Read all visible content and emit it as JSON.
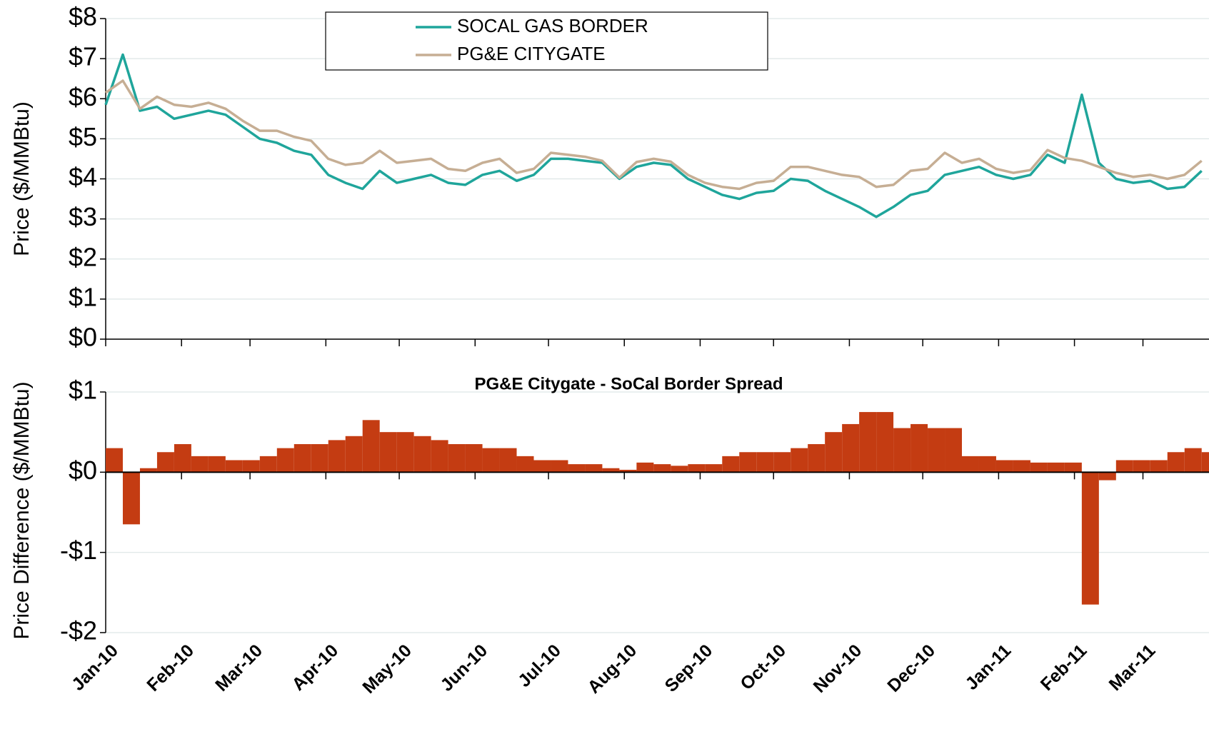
{
  "chart_data": [
    {
      "type": "line",
      "ylabel": "Price ($/MMBtu)",
      "legend": "top",
      "xlim": [
        0,
        451
      ],
      "ylim": [
        0,
        8
      ],
      "grid": true,
      "yticks": [
        {
          "value": 0,
          "label": "$0"
        },
        {
          "value": 1,
          "label": "$1"
        },
        {
          "value": 2,
          "label": "$2"
        },
        {
          "value": 3,
          "label": "$3"
        },
        {
          "value": 4,
          "label": "$4"
        },
        {
          "value": 5,
          "label": "$5"
        },
        {
          "value": 6,
          "label": "$6"
        },
        {
          "value": 7,
          "label": "$7"
        },
        {
          "value": 8,
          "label": "$8"
        }
      ],
      "x": [
        0,
        7,
        14,
        21,
        28,
        35,
        42,
        49,
        56,
        63,
        70,
        77,
        84,
        91,
        98,
        105,
        112,
        119,
        126,
        133,
        140,
        147,
        154,
        161,
        168,
        175,
        182,
        189,
        196,
        203,
        210,
        217,
        224,
        231,
        238,
        245,
        252,
        259,
        266,
        273,
        280,
        287,
        294,
        301,
        308,
        315,
        322,
        329,
        336,
        343,
        350,
        357,
        364,
        371,
        378,
        385,
        392,
        399,
        406,
        413,
        420,
        427,
        434,
        441,
        448
      ],
      "series": [
        {
          "name": "SOCAL GAS BORDER",
          "color": "#1fa59b",
          "values": [
            5.85,
            7.1,
            5.7,
            5.8,
            5.5,
            5.6,
            5.7,
            5.6,
            5.3,
            5.0,
            4.9,
            4.7,
            4.6,
            4.1,
            3.9,
            3.75,
            4.2,
            3.9,
            4.0,
            4.1,
            3.9,
            3.85,
            4.1,
            4.2,
            3.95,
            4.1,
            4.5,
            4.5,
            4.45,
            4.4,
            4.0,
            4.3,
            4.4,
            4.35,
            4.0,
            3.8,
            3.6,
            3.5,
            3.65,
            3.7,
            4.0,
            3.95,
            3.7,
            3.5,
            3.3,
            3.05,
            3.3,
            3.6,
            3.7,
            4.1,
            4.2,
            4.3,
            4.1,
            4.0,
            4.1,
            4.6,
            4.4,
            6.1,
            4.4,
            4.0,
            3.9,
            3.95,
            3.75,
            3.8,
            4.2
          ]
        },
        {
          "name": "PG&E CITYGATE",
          "color": "#c6ae94",
          "values": [
            6.15,
            6.45,
            5.75,
            6.05,
            5.85,
            5.8,
            5.9,
            5.75,
            5.45,
            5.2,
            5.2,
            5.05,
            4.95,
            4.5,
            4.35,
            4.4,
            4.7,
            4.4,
            4.45,
            4.5,
            4.25,
            4.2,
            4.4,
            4.5,
            4.15,
            4.25,
            4.65,
            4.6,
            4.55,
            4.45,
            4.03,
            4.42,
            4.5,
            4.43,
            4.1,
            3.9,
            3.8,
            3.75,
            3.9,
            3.95,
            4.3,
            4.3,
            4.2,
            4.1,
            4.05,
            3.8,
            3.85,
            4.2,
            4.25,
            4.65,
            4.4,
            4.5,
            4.25,
            4.15,
            4.22,
            4.72,
            4.52,
            4.45,
            4.3,
            4.15,
            4.05,
            4.1,
            4.0,
            4.1,
            4.45
          ]
        }
      ]
    },
    {
      "type": "bar",
      "title": "PG&E Citygate - SoCal Border Spread",
      "ylabel": "Price Difference ($/MMBtu)",
      "color": "#c43c12",
      "xlim": [
        0,
        451
      ],
      "ylim": [
        -2,
        1
      ],
      "grid": true,
      "yticks": [
        {
          "value": -2,
          "label": "-$2"
        },
        {
          "value": -1,
          "label": "-$1"
        },
        {
          "value": 0,
          "label": "$0"
        },
        {
          "value": 1,
          "label": "$1"
        }
      ],
      "xticks": [
        {
          "value": 0,
          "label": "Jan-10"
        },
        {
          "value": 31,
          "label": "Feb-10"
        },
        {
          "value": 59,
          "label": "Mar-10"
        },
        {
          "value": 90,
          "label": "Apr-10"
        },
        {
          "value": 120,
          "label": "May-10"
        },
        {
          "value": 151,
          "label": "Jun-10"
        },
        {
          "value": 181,
          "label": "Jul-10"
        },
        {
          "value": 212,
          "label": "Aug-10"
        },
        {
          "value": 243,
          "label": "Sep-10"
        },
        {
          "value": 273,
          "label": "Oct-10"
        },
        {
          "value": 304,
          "label": "Nov-10"
        },
        {
          "value": 334,
          "label": "Dec-10"
        },
        {
          "value": 365,
          "label": "Jan-11"
        },
        {
          "value": 396,
          "label": "Feb-11"
        },
        {
          "value": 424,
          "label": "Mar-11"
        }
      ],
      "x": [
        0,
        7,
        14,
        21,
        28,
        35,
        42,
        49,
        56,
        63,
        70,
        77,
        84,
        91,
        98,
        105,
        112,
        119,
        126,
        133,
        140,
        147,
        154,
        161,
        168,
        175,
        182,
        189,
        196,
        203,
        210,
        217,
        224,
        231,
        238,
        245,
        252,
        259,
        266,
        273,
        280,
        287,
        294,
        301,
        308,
        315,
        322,
        329,
        336,
        343,
        350,
        357,
        364,
        371,
        378,
        385,
        392,
        399,
        406,
        413,
        420,
        427,
        434,
        441,
        448
      ],
      "values": [
        0.3,
        -0.65,
        0.05,
        0.25,
        0.35,
        0.2,
        0.2,
        0.15,
        0.15,
        0.2,
        0.3,
        0.35,
        0.35,
        0.4,
        0.45,
        0.65,
        0.5,
        0.5,
        0.45,
        0.4,
        0.35,
        0.35,
        0.3,
        0.3,
        0.2,
        0.15,
        0.15,
        0.1,
        0.1,
        0.05,
        0.03,
        0.12,
        0.1,
        0.08,
        0.1,
        0.1,
        0.2,
        0.25,
        0.25,
        0.25,
        0.3,
        0.35,
        0.5,
        0.6,
        0.75,
        0.75,
        0.55,
        0.6,
        0.55,
        0.55,
        0.2,
        0.2,
        0.15,
        0.15,
        0.12,
        0.12,
        0.12,
        -1.65,
        -0.1,
        0.15,
        0.15,
        0.15,
        0.25,
        0.3,
        0.25
      ]
    }
  ]
}
